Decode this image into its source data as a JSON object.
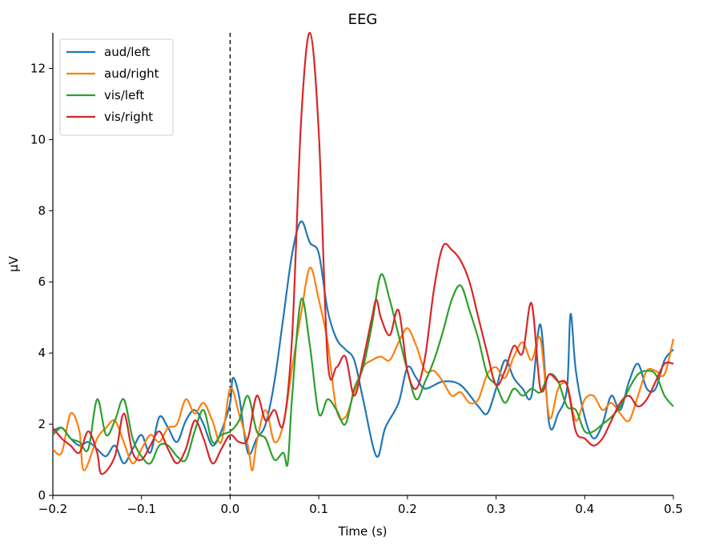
{
  "chart_data": {
    "type": "line",
    "title": "EEG",
    "xlabel": "Time (s)",
    "ylabel": "µV",
    "xlim": [
      -0.2,
      0.5
    ],
    "ylim": [
      0,
      13
    ],
    "xticks": [
      -0.2,
      -0.1,
      0.0,
      0.1,
      0.2,
      0.3,
      0.4,
      0.5
    ],
    "xtick_labels": [
      "−0.2",
      "−0.1",
      "0.0",
      "0.1",
      "0.2",
      "0.3",
      "0.4",
      "0.5"
    ],
    "yticks": [
      0,
      2,
      4,
      6,
      8,
      10,
      12
    ],
    "ytick_labels": [
      "0",
      "2",
      "4",
      "6",
      "8",
      "10",
      "12"
    ],
    "vline_x": 0.0,
    "grid": false,
    "legend_position": "top-left",
    "series": [
      {
        "name": "aud/left",
        "color": "#1f77b4",
        "points": [
          [
            -0.2,
            1.8
          ],
          [
            -0.19,
            1.9
          ],
          [
            -0.18,
            1.6
          ],
          [
            -0.17,
            1.4
          ],
          [
            -0.16,
            1.5
          ],
          [
            -0.15,
            1.3
          ],
          [
            -0.14,
            1.1
          ],
          [
            -0.13,
            1.4
          ],
          [
            -0.12,
            0.9
          ],
          [
            -0.11,
            1.3
          ],
          [
            -0.1,
            1.7
          ],
          [
            -0.09,
            1.2
          ],
          [
            -0.08,
            2.2
          ],
          [
            -0.07,
            1.9
          ],
          [
            -0.06,
            1.5
          ],
          [
            -0.05,
            2.1
          ],
          [
            -0.04,
            2.4
          ],
          [
            -0.03,
            2.0
          ],
          [
            -0.02,
            1.4
          ],
          [
            -0.01,
            1.8
          ],
          [
            0.0,
            2.6
          ],
          [
            0.003,
            3.3
          ],
          [
            0.01,
            2.8
          ],
          [
            0.02,
            1.2
          ],
          [
            0.03,
            1.6
          ],
          [
            0.04,
            2.0
          ],
          [
            0.05,
            3.2
          ],
          [
            0.06,
            5.0
          ],
          [
            0.07,
            6.8
          ],
          [
            0.08,
            7.7
          ],
          [
            0.09,
            7.1
          ],
          [
            0.1,
            6.8
          ],
          [
            0.11,
            5.2
          ],
          [
            0.12,
            4.4
          ],
          [
            0.13,
            4.1
          ],
          [
            0.14,
            3.8
          ],
          [
            0.15,
            2.7
          ],
          [
            0.165,
            1.1
          ],
          [
            0.175,
            1.9
          ],
          [
            0.19,
            2.6
          ],
          [
            0.2,
            3.6
          ],
          [
            0.21,
            3.3
          ],
          [
            0.22,
            3.0
          ],
          [
            0.24,
            3.2
          ],
          [
            0.26,
            3.1
          ],
          [
            0.28,
            2.5
          ],
          [
            0.29,
            2.3
          ],
          [
            0.3,
            3.0
          ],
          [
            0.31,
            3.8
          ],
          [
            0.32,
            3.3
          ],
          [
            0.33,
            3.0
          ],
          [
            0.34,
            2.8
          ],
          [
            0.35,
            4.8
          ],
          [
            0.36,
            2.0
          ],
          [
            0.37,
            2.3
          ],
          [
            0.38,
            3.0
          ],
          [
            0.384,
            5.1
          ],
          [
            0.39,
            3.5
          ],
          [
            0.4,
            2.2
          ],
          [
            0.41,
            1.6
          ],
          [
            0.42,
            2.0
          ],
          [
            0.43,
            2.8
          ],
          [
            0.44,
            2.4
          ],
          [
            0.45,
            3.2
          ],
          [
            0.46,
            3.7
          ],
          [
            0.47,
            3.0
          ],
          [
            0.48,
            3.0
          ],
          [
            0.49,
            3.8
          ],
          [
            0.5,
            4.1
          ]
        ]
      },
      {
        "name": "aud/right",
        "color": "#ff7f0e",
        "points": [
          [
            -0.2,
            1.3
          ],
          [
            -0.19,
            1.2
          ],
          [
            -0.18,
            2.3
          ],
          [
            -0.17,
            1.8
          ],
          [
            -0.165,
            0.7
          ],
          [
            -0.15,
            1.6
          ],
          [
            -0.14,
            1.9
          ],
          [
            -0.13,
            2.1
          ],
          [
            -0.12,
            1.5
          ],
          [
            -0.11,
            0.9
          ],
          [
            -0.1,
            1.3
          ],
          [
            -0.09,
            1.7
          ],
          [
            -0.08,
            1.5
          ],
          [
            -0.07,
            1.9
          ],
          [
            -0.06,
            2.0
          ],
          [
            -0.05,
            2.7
          ],
          [
            -0.04,
            2.3
          ],
          [
            -0.03,
            2.6
          ],
          [
            -0.02,
            2.1
          ],
          [
            -0.01,
            1.5
          ],
          [
            0.0,
            3.0
          ],
          [
            0.01,
            2.3
          ],
          [
            0.02,
            1.4
          ],
          [
            0.025,
            0.7
          ],
          [
            0.03,
            1.5
          ],
          [
            0.04,
            2.4
          ],
          [
            0.05,
            1.5
          ],
          [
            0.06,
            2.0
          ],
          [
            0.07,
            3.6
          ],
          [
            0.08,
            5.1
          ],
          [
            0.09,
            6.4
          ],
          [
            0.1,
            5.5
          ],
          [
            0.11,
            4.3
          ],
          [
            0.12,
            2.4
          ],
          [
            0.13,
            2.2
          ],
          [
            0.14,
            2.9
          ],
          [
            0.15,
            3.6
          ],
          [
            0.16,
            3.8
          ],
          [
            0.17,
            3.9
          ],
          [
            0.18,
            3.8
          ],
          [
            0.19,
            4.3
          ],
          [
            0.2,
            4.7
          ],
          [
            0.21,
            4.2
          ],
          [
            0.22,
            3.5
          ],
          [
            0.23,
            3.5
          ],
          [
            0.24,
            3.2
          ],
          [
            0.25,
            2.8
          ],
          [
            0.26,
            2.9
          ],
          [
            0.27,
            2.6
          ],
          [
            0.28,
            2.7
          ],
          [
            0.29,
            3.4
          ],
          [
            0.3,
            3.6
          ],
          [
            0.31,
            3.3
          ],
          [
            0.32,
            3.9
          ],
          [
            0.33,
            4.3
          ],
          [
            0.34,
            3.8
          ],
          [
            0.35,
            4.4
          ],
          [
            0.36,
            2.2
          ],
          [
            0.37,
            3.0
          ],
          [
            0.38,
            3.1
          ],
          [
            0.39,
            2.1
          ],
          [
            0.4,
            2.7
          ],
          [
            0.41,
            2.8
          ],
          [
            0.42,
            2.4
          ],
          [
            0.43,
            2.6
          ],
          [
            0.44,
            2.3
          ],
          [
            0.45,
            2.1
          ],
          [
            0.46,
            2.8
          ],
          [
            0.47,
            3.5
          ],
          [
            0.48,
            3.5
          ],
          [
            0.49,
            3.4
          ],
          [
            0.5,
            4.4
          ]
        ]
      },
      {
        "name": "vis/left",
        "color": "#2ca02c",
        "points": [
          [
            -0.2,
            1.7
          ],
          [
            -0.19,
            1.9
          ],
          [
            -0.18,
            1.6
          ],
          [
            -0.17,
            1.5
          ],
          [
            -0.16,
            1.3
          ],
          [
            -0.15,
            2.7
          ],
          [
            -0.14,
            1.7
          ],
          [
            -0.13,
            2.1
          ],
          [
            -0.12,
            2.7
          ],
          [
            -0.11,
            1.6
          ],
          [
            -0.1,
            1.1
          ],
          [
            -0.09,
            0.9
          ],
          [
            -0.08,
            1.4
          ],
          [
            -0.07,
            1.4
          ],
          [
            -0.06,
            1.1
          ],
          [
            -0.05,
            1.0
          ],
          [
            -0.04,
            1.8
          ],
          [
            -0.03,
            2.4
          ],
          [
            -0.02,
            1.5
          ],
          [
            -0.01,
            1.7
          ],
          [
            0.0,
            1.8
          ],
          [
            0.01,
            2.1
          ],
          [
            0.02,
            2.8
          ],
          [
            0.03,
            1.8
          ],
          [
            0.04,
            1.6
          ],
          [
            0.05,
            1.0
          ],
          [
            0.06,
            1.2
          ],
          [
            0.065,
            0.9
          ],
          [
            0.07,
            2.8
          ],
          [
            0.08,
            5.5
          ],
          [
            0.09,
            4.2
          ],
          [
            0.1,
            2.3
          ],
          [
            0.11,
            2.7
          ],
          [
            0.12,
            2.4
          ],
          [
            0.13,
            2.0
          ],
          [
            0.14,
            3.0
          ],
          [
            0.15,
            3.6
          ],
          [
            0.16,
            4.8
          ],
          [
            0.17,
            6.2
          ],
          [
            0.18,
            5.5
          ],
          [
            0.19,
            4.5
          ],
          [
            0.2,
            3.5
          ],
          [
            0.21,
            2.7
          ],
          [
            0.22,
            3.2
          ],
          [
            0.23,
            3.8
          ],
          [
            0.24,
            4.6
          ],
          [
            0.25,
            5.5
          ],
          [
            0.26,
            5.9
          ],
          [
            0.27,
            5.2
          ],
          [
            0.28,
            4.4
          ],
          [
            0.29,
            3.4
          ],
          [
            0.3,
            3.1
          ],
          [
            0.31,
            2.6
          ],
          [
            0.32,
            3.0
          ],
          [
            0.33,
            2.8
          ],
          [
            0.34,
            3.0
          ],
          [
            0.35,
            2.9
          ],
          [
            0.36,
            3.4
          ],
          [
            0.37,
            3.2
          ],
          [
            0.38,
            2.5
          ],
          [
            0.39,
            2.4
          ],
          [
            0.4,
            1.8
          ],
          [
            0.41,
            1.8
          ],
          [
            0.42,
            2.0
          ],
          [
            0.43,
            2.2
          ],
          [
            0.44,
            2.5
          ],
          [
            0.45,
            3.0
          ],
          [
            0.46,
            3.4
          ],
          [
            0.47,
            3.5
          ],
          [
            0.48,
            3.4
          ],
          [
            0.49,
            2.8
          ],
          [
            0.5,
            2.5
          ]
        ]
      },
      {
        "name": "vis/right",
        "color": "#d62728",
        "points": [
          [
            -0.2,
            1.9
          ],
          [
            -0.19,
            1.6
          ],
          [
            -0.18,
            1.4
          ],
          [
            -0.17,
            1.2
          ],
          [
            -0.16,
            1.8
          ],
          [
            -0.15,
            1.2
          ],
          [
            -0.145,
            0.6
          ],
          [
            -0.13,
            1.1
          ],
          [
            -0.12,
            2.3
          ],
          [
            -0.11,
            1.2
          ],
          [
            -0.1,
            1.0
          ],
          [
            -0.09,
            1.4
          ],
          [
            -0.08,
            1.8
          ],
          [
            -0.07,
            1.3
          ],
          [
            -0.06,
            0.9
          ],
          [
            -0.05,
            1.3
          ],
          [
            -0.04,
            2.1
          ],
          [
            -0.03,
            1.6
          ],
          [
            -0.02,
            0.9
          ],
          [
            -0.01,
            1.3
          ],
          [
            0.0,
            1.7
          ],
          [
            0.01,
            1.5
          ],
          [
            0.02,
            1.6
          ],
          [
            0.03,
            2.8
          ],
          [
            0.04,
            2.1
          ],
          [
            0.05,
            2.4
          ],
          [
            0.06,
            2.0
          ],
          [
            0.07,
            4.5
          ],
          [
            0.08,
            10.5
          ],
          [
            0.09,
            13.0
          ],
          [
            0.1,
            10.2
          ],
          [
            0.11,
            3.8
          ],
          [
            0.12,
            3.6
          ],
          [
            0.13,
            3.9
          ],
          [
            0.14,
            2.8
          ],
          [
            0.15,
            3.8
          ],
          [
            0.16,
            5.0
          ],
          [
            0.165,
            5.5
          ],
          [
            0.17,
            5.0
          ],
          [
            0.18,
            4.5
          ],
          [
            0.19,
            5.2
          ],
          [
            0.2,
            3.5
          ],
          [
            0.21,
            3.0
          ],
          [
            0.22,
            3.9
          ],
          [
            0.23,
            5.8
          ],
          [
            0.24,
            7.0
          ],
          [
            0.25,
            6.9
          ],
          [
            0.26,
            6.6
          ],
          [
            0.27,
            6.0
          ],
          [
            0.28,
            5.0
          ],
          [
            0.29,
            4.0
          ],
          [
            0.3,
            3.1
          ],
          [
            0.31,
            3.5
          ],
          [
            0.32,
            4.2
          ],
          [
            0.33,
            4.0
          ],
          [
            0.34,
            5.4
          ],
          [
            0.35,
            3.0
          ],
          [
            0.36,
            3.4
          ],
          [
            0.37,
            3.2
          ],
          [
            0.38,
            3.1
          ],
          [
            0.39,
            1.8
          ],
          [
            0.4,
            1.6
          ],
          [
            0.41,
            1.4
          ],
          [
            0.42,
            1.6
          ],
          [
            0.43,
            2.1
          ],
          [
            0.44,
            2.6
          ],
          [
            0.45,
            2.8
          ],
          [
            0.46,
            2.5
          ],
          [
            0.47,
            2.7
          ],
          [
            0.48,
            3.2
          ],
          [
            0.49,
            3.7
          ],
          [
            0.5,
            3.7
          ]
        ]
      }
    ]
  }
}
